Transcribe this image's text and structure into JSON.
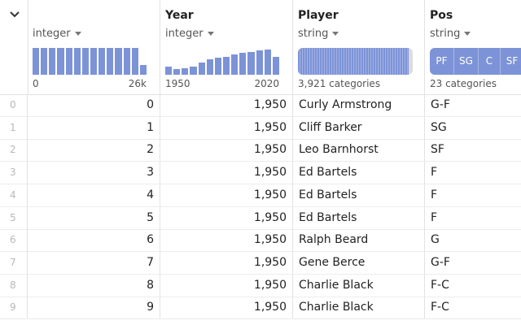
{
  "columns": [
    {
      "name": "",
      "type": "integer",
      "hist": [
        92,
        92,
        92,
        92,
        92,
        92,
        92,
        92,
        92,
        92,
        92,
        92,
        92,
        33
      ],
      "range_min": "0",
      "range_max": "26k"
    },
    {
      "name": "Year",
      "type": "integer",
      "hist": [
        28,
        20,
        22,
        28,
        42,
        52,
        58,
        62,
        70,
        76,
        78,
        84,
        86,
        60
      ],
      "range_min": "1950",
      "range_max": "2020"
    },
    {
      "name": "Player",
      "type": "string",
      "summary": "3,921 categories"
    },
    {
      "name": "Pos",
      "type": "string",
      "summary": "23 categories",
      "categories": [
        "PF",
        "SG",
        "C",
        "SF"
      ]
    }
  ],
  "rows": [
    {
      "idx": "0",
      "id": "0",
      "year": "1,950",
      "player": "Curly Armstrong",
      "pos": "G-F"
    },
    {
      "idx": "1",
      "id": "1",
      "year": "1,950",
      "player": "Cliff Barker",
      "pos": "SG"
    },
    {
      "idx": "2",
      "id": "2",
      "year": "1,950",
      "player": "Leo Barnhorst",
      "pos": "SF"
    },
    {
      "idx": "3",
      "id": "3",
      "year": "1,950",
      "player": "Ed Bartels",
      "pos": "F"
    },
    {
      "idx": "4",
      "id": "4",
      "year": "1,950",
      "player": "Ed Bartels",
      "pos": "F"
    },
    {
      "idx": "5",
      "id": "5",
      "year": "1,950",
      "player": "Ed Bartels",
      "pos": "F"
    },
    {
      "idx": "6",
      "id": "6",
      "year": "1,950",
      "player": "Ralph Beard",
      "pos": "G"
    },
    {
      "idx": "7",
      "id": "7",
      "year": "1,950",
      "player": "Gene Berce",
      "pos": "G-F"
    },
    {
      "idx": "8",
      "id": "8",
      "year": "1,950",
      "player": "Charlie Black",
      "pos": "F-C"
    },
    {
      "idx": "9",
      "id": "9",
      "year": "1,950",
      "player": "Charlie Black",
      "pos": "F-C"
    }
  ],
  "colors": {
    "accent": "#7d93d7",
    "grid": "#e2e2e2",
    "index": "#b8b8b8"
  },
  "icons": {
    "corner": "chevron-down-icon",
    "type_menu": "caret-down-icon"
  }
}
